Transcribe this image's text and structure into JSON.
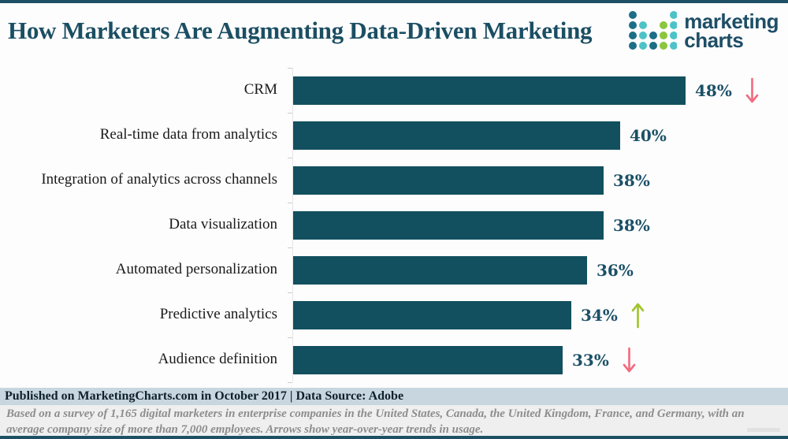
{
  "header": {
    "title": "How Marketers Are Augmenting Data-Driven Marketing",
    "logo": {
      "line1": "marketing",
      "line2": "charts"
    }
  },
  "chart_data": {
    "type": "bar",
    "orientation": "horizontal",
    "title": "How Marketers Are Augmenting Data-Driven Marketing",
    "categories": [
      "CRM",
      "Real-time data from analytics",
      "Integration of analytics across channels",
      "Data visualization",
      "Automated personalization",
      "Predictive analytics",
      "Audience definition"
    ],
    "values": [
      48,
      40,
      38,
      38,
      36,
      34,
      33
    ],
    "value_suffix": "%",
    "xlim": [
      0,
      60
    ],
    "grid": false,
    "legend": "none",
    "trends": [
      "down",
      null,
      null,
      null,
      null,
      "up",
      "down"
    ],
    "trend_note": "Arrows show year-over-year trends in usage",
    "rows": [
      {
        "label": "CRM",
        "value": "48%",
        "trend": "down"
      },
      {
        "label": "Real-time data from analytics",
        "value": "40%",
        "trend": null
      },
      {
        "label": "Integration of analytics across channels",
        "value": "38%",
        "trend": null
      },
      {
        "label": "Data visualization",
        "value": "38%",
        "trend": null
      },
      {
        "label": "Automated personalization",
        "value": "36%",
        "trend": null
      },
      {
        "label": "Predictive analytics",
        "value": "34%",
        "trend": "up"
      },
      {
        "label": "Audience definition",
        "value": "33%",
        "trend": "down"
      }
    ],
    "colors": {
      "bar": "#12505f",
      "value_label": "#1b5066",
      "up_arrow": "#9fc42a",
      "down_arrow": "#f4697e",
      "accent_dark": "#1d5065",
      "logo_dark": "#1d4e66",
      "logo_teal": "#4ec3c7",
      "logo_green": "#8cc63f"
    }
  },
  "footer": {
    "published": "Published on MarketingCharts.com in October 2017 | Data Source: Adobe",
    "note": "Based on a survey of 1,165 digital marketers in enterprise companies in the United States, Canada, the United Kingdom, France, and Germany, with an average company size of more than 7,000 employees. Arrows show year-over-year trends in usage."
  }
}
